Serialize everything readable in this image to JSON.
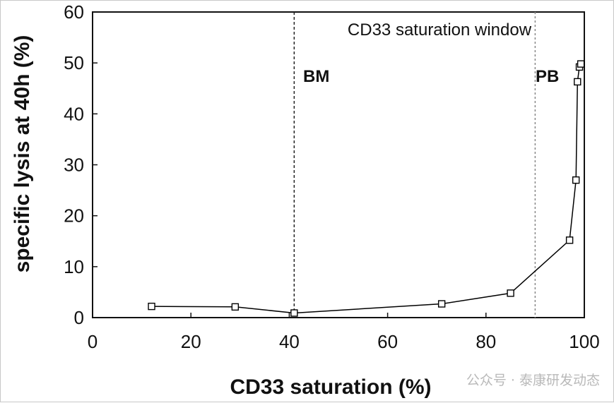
{
  "chart_data": {
    "type": "line",
    "title": "",
    "xlabel": "CD33 saturation (%)",
    "ylabel": "specific lysis at 40h (%)",
    "xlim": [
      0,
      100
    ],
    "ylim": [
      0,
      60
    ],
    "x_ticks": [
      "0",
      "20",
      "40",
      "60",
      "80",
      "100"
    ],
    "y_ticks": [
      "0",
      "10",
      "20",
      "30",
      "40",
      "50",
      "60"
    ],
    "grid": false,
    "series": [
      {
        "marker": "open-square",
        "color": "#000000",
        "x": [
          12,
          29,
          41,
          71,
          85,
          97,
          98.3,
          98.6,
          99,
          99.3
        ],
        "y": [
          2.2,
          2.1,
          0.9,
          2.7,
          4.8,
          15.2,
          27,
          46.3,
          49.2,
          49.8
        ]
      }
    ],
    "reference_lines": [
      {
        "x": 41,
        "label": "BM",
        "style": "dashed"
      },
      {
        "x": 90,
        "label": "PB",
        "style": "dashed"
      }
    ],
    "annotations": [
      {
        "text": "CD33 saturation window"
      }
    ]
  },
  "watermark": {
    "text": "公众号 · 泰康研发动态"
  }
}
